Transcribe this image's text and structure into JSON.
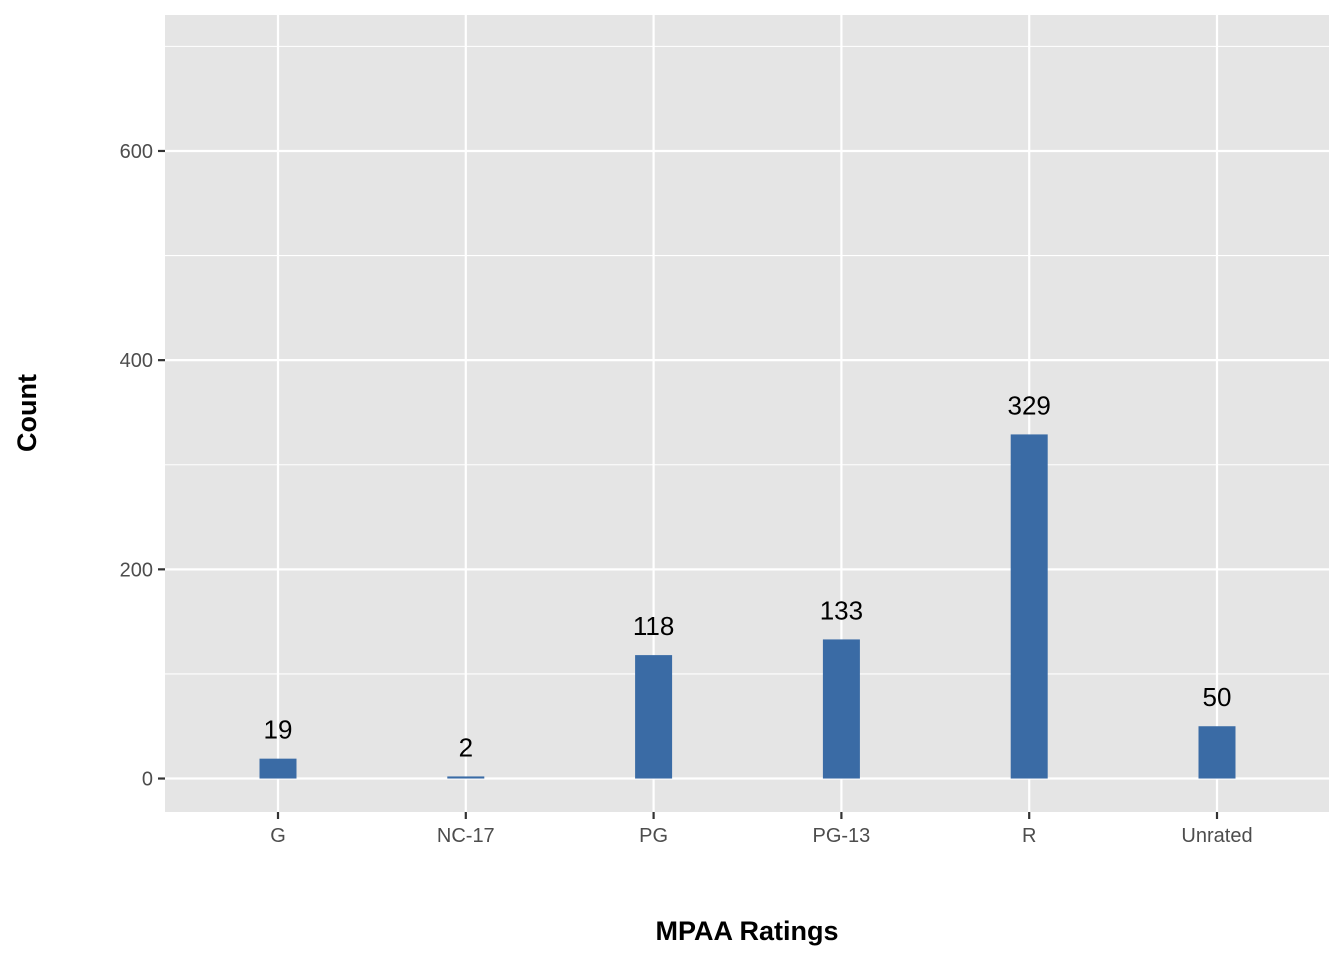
{
  "chart_data": {
    "type": "bar",
    "title": "",
    "xlabel": "MPAA Ratings",
    "ylabel": "Count",
    "categories": [
      "G",
      "NC-17",
      "PG",
      "PG-13",
      "R",
      "Unrated"
    ],
    "values": [
      19,
      2,
      118,
      133,
      329,
      50
    ],
    "data_labels": [
      "19",
      "2",
      "118",
      "133",
      "329",
      "50"
    ],
    "yticks": [
      0,
      200,
      400,
      600
    ],
    "ytick_labels": [
      "0",
      "200",
      "400",
      "600"
    ],
    "ylim": [
      -32,
      730
    ],
    "grid": true,
    "legend": "none",
    "colors": {
      "bar": "#3A6BA5",
      "panel": "#E5E5E5",
      "grid": "#FFFFFF",
      "tick_text": "#4D4D4D"
    }
  }
}
